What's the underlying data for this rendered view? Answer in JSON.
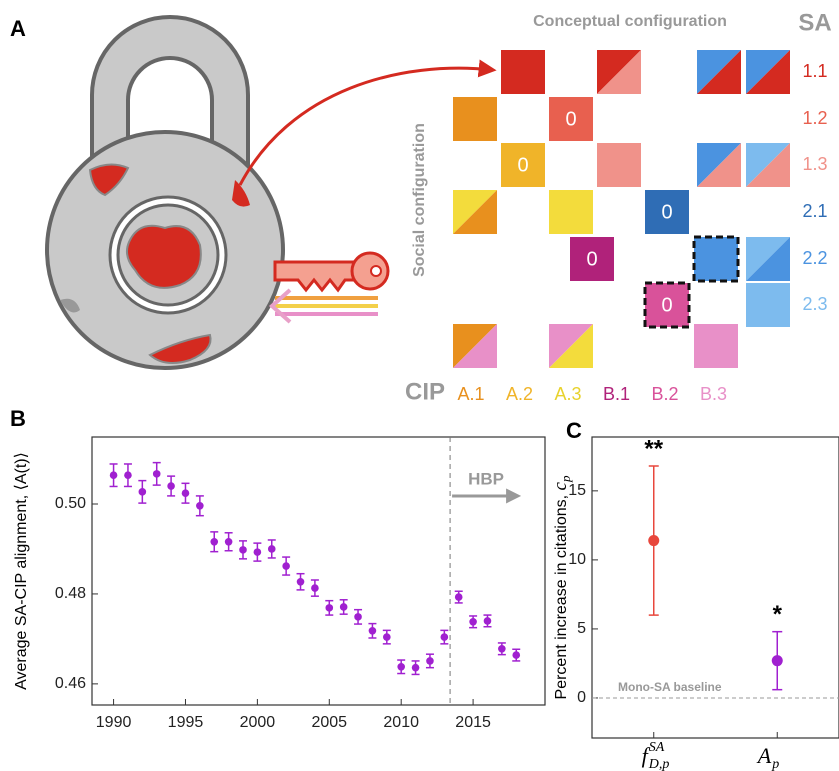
{
  "panel_a": {
    "label": "A",
    "title": "Conceptual configuration",
    "side_title": "Social configuration",
    "sa_heading": "SA",
    "sa_rows": [
      {
        "name": "1.1",
        "color": "#d42a20"
      },
      {
        "name": "1.2",
        "color": "#e8604f"
      },
      {
        "name": "1.3",
        "color": "#f0928a"
      },
      {
        "name": "2.1",
        "color": "#2f6db5"
      },
      {
        "name": "2.2",
        "color": "#4b93e0"
      },
      {
        "name": "2.3",
        "color": "#7dbbee"
      }
    ],
    "cip_heading": "CIP",
    "cip_columns": [
      {
        "name": "A.1",
        "color": "#e8901e"
      },
      {
        "name": "A.2",
        "color": "#f0b429"
      },
      {
        "name": "A.3",
        "color": "#e8d22c"
      },
      {
        "name": "B.1",
        "color": "#b0227a"
      },
      {
        "name": "B.2",
        "color": "#d9529a"
      },
      {
        "name": "B.3",
        "color": "#e890c8"
      }
    ],
    "cell_labels": [
      "0",
      "0",
      "0",
      "0",
      "0"
    ]
  },
  "chart_data": [
    {
      "type": "errorbar",
      "panel_label": "B",
      "ylabel": "Average SA-CIP alignment, ⟨A(t)⟩",
      "x": [
        1990,
        1991,
        1992,
        1993,
        1994,
        1995,
        1996,
        1997,
        1998,
        1999,
        2000,
        2001,
        2002,
        2003,
        2004,
        2005,
        2006,
        2007,
        2008,
        2009,
        2010,
        2011,
        2012,
        2013,
        2014,
        2015,
        2016,
        2017,
        2018
      ],
      "values": [
        0.5064,
        0.5064,
        0.5027,
        0.5067,
        0.504,
        0.5024,
        0.4996,
        0.4916,
        0.4916,
        0.4898,
        0.4893,
        0.49,
        0.4862,
        0.4827,
        0.4813,
        0.4769,
        0.4771,
        0.4749,
        0.4718,
        0.4704,
        0.4638,
        0.4636,
        0.4651,
        0.4704,
        0.4793,
        0.4738,
        0.474,
        0.4678,
        0.4664
      ],
      "errors": [
        0.0025,
        0.0025,
        0.0025,
        0.0025,
        0.0022,
        0.0022,
        0.0022,
        0.0022,
        0.002,
        0.002,
        0.002,
        0.002,
        0.002,
        0.0018,
        0.0018,
        0.0016,
        0.0016,
        0.0016,
        0.0016,
        0.0015,
        0.0015,
        0.0015,
        0.0015,
        0.0015,
        0.0013,
        0.0013,
        0.0013,
        0.0013,
        0.0013
      ],
      "color": "#a020d0",
      "xlim": [
        1988.5,
        2020
      ],
      "xticks": [
        1990,
        1995,
        2000,
        2005,
        2010,
        2015
      ],
      "ylim": [
        0.4553,
        0.5149
      ],
      "yticks": [
        0.46,
        0.48,
        {
          "value": 0.5,
          "label": "0.50"
        }
      ],
      "marker_line": {
        "value": 2013.4,
        "label": "HBP"
      }
    },
    {
      "type": "errorbar",
      "panel_label": "C",
      "ylabel": "Percent increase in citations, ",
      "ylabel_symbol": {
        "base": "c",
        "sub": "p"
      },
      "categories": [
        {
          "base": "f",
          "sub": "D,p",
          "sup": "SA"
        },
        {
          "base": "A",
          "sub": "p"
        }
      ],
      "values": [
        11.4,
        2.7
      ],
      "errors": [
        5.4,
        2.1
      ],
      "colors": [
        "#e8473c",
        "#a020d0"
      ],
      "annotations": [
        "**",
        "*"
      ],
      "ylim": [
        -2.9,
        18.9
      ],
      "yticks": [
        0,
        5,
        10,
        15
      ],
      "baseline": {
        "value": 0,
        "label": "Mono-SA baseline"
      }
    }
  ]
}
